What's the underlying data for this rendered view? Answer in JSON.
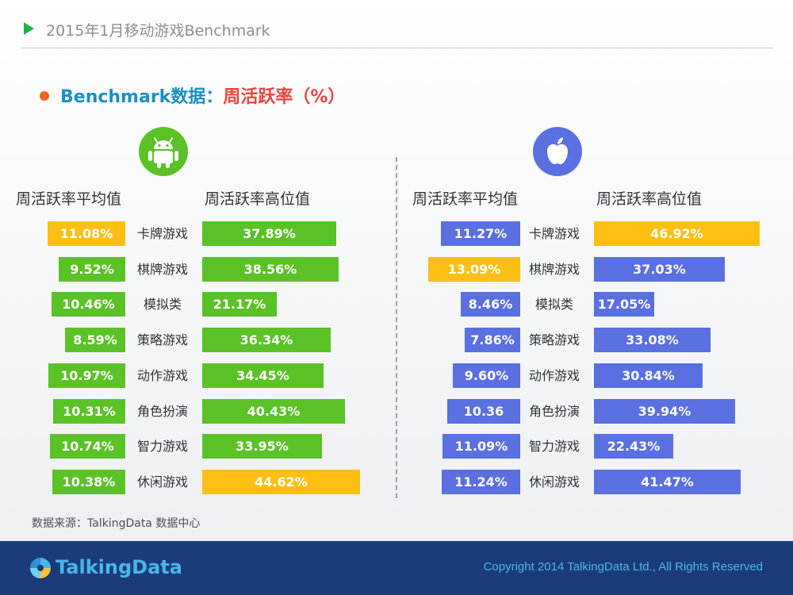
{
  "header": {
    "title": "2015年1月移动游戏Benchmark"
  },
  "subtitle": {
    "part1": "Benchmark数据：",
    "part2": "周活跃率（%）"
  },
  "platforms": {
    "android_icon": "android-icon",
    "apple_icon": "apple-icon"
  },
  "column_headers": {
    "android_avg": "周活跃率平均值",
    "android_high": "周活跃率高位值",
    "ios_avg": "周活跃率平均值",
    "ios_high": "周活跃率高位值"
  },
  "colors": {
    "android": "#5ac226",
    "ios": "#5a6fe0",
    "highlight": "#fdbf14"
  },
  "chart_data": {
    "type": "bar",
    "categories": [
      "卡牌游戏",
      "棋牌游戏",
      "模拟类",
      "策略游戏",
      "动作游戏",
      "角色扮演",
      "智力游戏",
      "休闲游戏"
    ],
    "panels": [
      {
        "platform": "android",
        "series": [
          {
            "name": "周活跃率平均值",
            "values": [
              11.08,
              9.52,
              10.46,
              8.59,
              10.97,
              10.31,
              10.74,
              10.38
            ],
            "labels": [
              "11.08%",
              "9.52%",
              "10.46%",
              "8.59%",
              "10.97%",
              "10.31%",
              "10.74%",
              "10.38%"
            ],
            "highlight_index": 0
          },
          {
            "name": "周活跃率高位值",
            "values": [
              37.89,
              38.56,
              21.17,
              36.34,
              34.45,
              40.43,
              33.95,
              44.62
            ],
            "labels": [
              "37.89%",
              "38.56%",
              "21.17%",
              "36.34%",
              "34.45%",
              "40.43%",
              "33.95%",
              "44.62%"
            ],
            "highlight_index": 7
          }
        ]
      },
      {
        "platform": "ios",
        "series": [
          {
            "name": "周活跃率平均值",
            "values": [
              11.27,
              13.09,
              8.46,
              7.86,
              9.6,
              10.36,
              11.09,
              11.24
            ],
            "labels": [
              "11.27%",
              "13.09%",
              "8.46%",
              "7.86%",
              "9.60%",
              "10.36",
              "11.09%",
              "11.24%"
            ],
            "highlight_index": 1
          },
          {
            "name": "周活跃率高位值",
            "values": [
              46.92,
              37.03,
              17.05,
              33.08,
              30.84,
              39.94,
              22.43,
              41.47
            ],
            "labels": [
              "46.92%",
              "37.03%",
              "17.05%",
              "33.08%",
              "30.84%",
              "39.94%",
              "22.43%",
              "41.47%"
            ],
            "highlight_index": 0
          }
        ]
      }
    ]
  },
  "source": "数据来源：TalkingData 数据中心",
  "footer": {
    "logo_text": "TalkingData",
    "copyright": "Copyright 2014 TalkingData Ltd., All Rights Reserved"
  }
}
